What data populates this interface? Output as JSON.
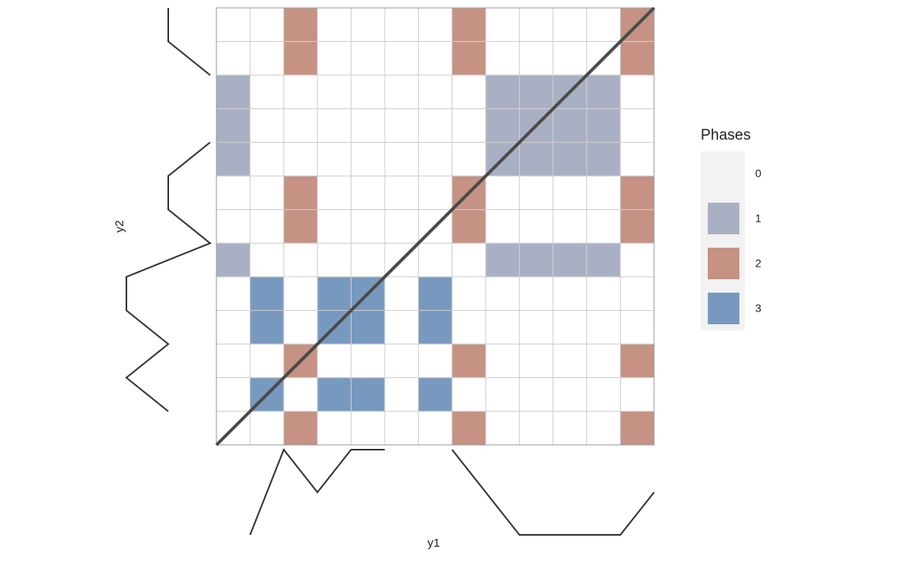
{
  "chart_data": {
    "type": "heatmap",
    "x_label": "y1",
    "y_label": "y2",
    "legend_title": "Phases",
    "phases": [
      {
        "name": "0",
        "color": "#ffffff",
        "legend_color": "#f2f2f2"
      },
      {
        "name": "1",
        "color": "#aab0c3"
      },
      {
        "name": "2",
        "color": "#c59284"
      },
      {
        "name": "3",
        "color": "#7899bf"
      }
    ],
    "matrix": [
      [
        0,
        0,
        2,
        0,
        0,
        0,
        0,
        2,
        0,
        0,
        0,
        0,
        2
      ],
      [
        0,
        0,
        2,
        0,
        0,
        0,
        0,
        2,
        0,
        0,
        0,
        0,
        2
      ],
      [
        1,
        0,
        0,
        0,
        0,
        0,
        0,
        0,
        1,
        1,
        1,
        1,
        0
      ],
      [
        1,
        0,
        0,
        0,
        0,
        0,
        0,
        0,
        1,
        1,
        1,
        1,
        0
      ],
      [
        1,
        0,
        0,
        0,
        0,
        0,
        0,
        0,
        1,
        1,
        1,
        1,
        0
      ],
      [
        0,
        0,
        2,
        0,
        0,
        0,
        0,
        2,
        0,
        0,
        0,
        0,
        2
      ],
      [
        0,
        0,
        2,
        0,
        0,
        0,
        0,
        2,
        0,
        0,
        0,
        0,
        2
      ],
      [
        1,
        0,
        0,
        0,
        0,
        0,
        0,
        0,
        1,
        1,
        1,
        1,
        0
      ],
      [
        0,
        3,
        0,
        3,
        3,
        0,
        3,
        0,
        0,
        0,
        0,
        0,
        0
      ],
      [
        0,
        3,
        0,
        3,
        3,
        0,
        3,
        0,
        0,
        0,
        0,
        0,
        0
      ],
      [
        0,
        0,
        2,
        0,
        0,
        0,
        0,
        2,
        0,
        0,
        0,
        0,
        2
      ],
      [
        0,
        3,
        0,
        3,
        3,
        0,
        3,
        0,
        0,
        0,
        0,
        0,
        0
      ],
      [
        0,
        0,
        2,
        0,
        0,
        0,
        0,
        2,
        0,
        0,
        0,
        0,
        2
      ]
    ],
    "y1": {
      "values": [
        null,
        1,
        3,
        2,
        3,
        3,
        null,
        3,
        2,
        1,
        1,
        1,
        1,
        2
      ]
    },
    "y2": {
      "values": [
        2,
        2,
        3,
        null,
        3,
        2,
        2,
        3,
        1,
        1,
        2,
        1,
        2,
        null
      ]
    }
  }
}
